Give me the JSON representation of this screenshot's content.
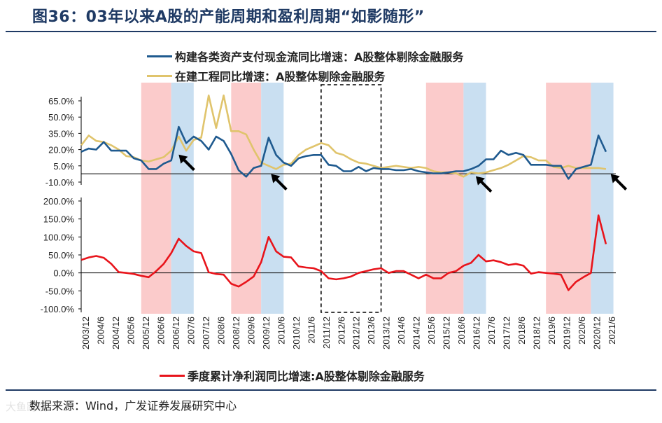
{
  "title": "图36：03年以来A股的产能周期和盈利周期“如影随形”",
  "source": "数据来源：Wind，广发证券发展研究中心",
  "watermark": "大鱼跨境",
  "colors": {
    "cashflow": "#1f5a8f",
    "construction": "#e0c46c",
    "profit": "#e8141b",
    "band_red": "#fbcbcb",
    "band_blue": "#c9dff1",
    "axis": "#000000",
    "title": "#1f3a64"
  },
  "chart_data": [
    {
      "type": "line",
      "title": "",
      "legend": [
        "构建各类资产支付现金流同比增速：A股整体剔除金融服务",
        "在建工程同比增速：A股整体剔除金融服务"
      ],
      "y_ticks": [
        "65.0%",
        "50.0%",
        "35.0%",
        "20.0%",
        "5.0%",
        "-10.0%"
      ],
      "ylim": [
        -10,
        75
      ],
      "x_labels": [
        "2003/12",
        "2004/6",
        "2004/12",
        "2005/6",
        "2005/12",
        "2006/6",
        "2006/12",
        "2007/6",
        "2007/12",
        "2008/6",
        "2008/12",
        "2009/6",
        "2009/12",
        "2010/6",
        "2010/12",
        "2011/6",
        "2011/12",
        "2012/6",
        "2012/12",
        "2013/6",
        "2013/12",
        "2014/6",
        "2014/12",
        "2015/6",
        "2015/12",
        "2016/6",
        "2016/12",
        "2017/6",
        "2017/12",
        "2018/6",
        "2018/12",
        "2019/6",
        "2019/12",
        "2020/6",
        "2020/12",
        "2021/6"
      ],
      "x_start": 2003.917,
      "x_end": 2021.75,
      "series": [
        {
          "name": "构建各类资产支付现金流同比增速：A股整体剔除金融服务",
          "color": "#1f5a8f",
          "points": [
            [
              2003.92,
              18
            ],
            [
              2004.17,
              21
            ],
            [
              2004.42,
              20
            ],
            [
              2004.67,
              27
            ],
            [
              2004.92,
              19
            ],
            [
              2005.17,
              19
            ],
            [
              2005.42,
              19
            ],
            [
              2005.67,
              12
            ],
            [
              2005.92,
              10
            ],
            [
              2006.17,
              2
            ],
            [
              2006.42,
              2
            ],
            [
              2006.67,
              7
            ],
            [
              2006.92,
              10
            ],
            [
              2007.17,
              41
            ],
            [
              2007.42,
              26
            ],
            [
              2007.67,
              32
            ],
            [
              2007.92,
              28
            ],
            [
              2008.17,
              20
            ],
            [
              2008.42,
              32
            ],
            [
              2008.67,
              28
            ],
            [
              2008.92,
              16
            ],
            [
              2009.17,
              1
            ],
            [
              2009.42,
              -5
            ],
            [
              2009.67,
              3
            ],
            [
              2009.92,
              5
            ],
            [
              2010.17,
              31
            ],
            [
              2010.42,
              15
            ],
            [
              2010.67,
              8
            ],
            [
              2010.92,
              5
            ],
            [
              2011.17,
              12
            ],
            [
              2011.42,
              14
            ],
            [
              2011.67,
              15
            ],
            [
              2011.92,
              15
            ],
            [
              2012.17,
              6
            ],
            [
              2012.42,
              5
            ],
            [
              2012.67,
              0
            ],
            [
              2012.92,
              0
            ],
            [
              2013.17,
              4
            ],
            [
              2013.42,
              0
            ],
            [
              2013.67,
              3
            ],
            [
              2013.92,
              2
            ],
            [
              2014.17,
              2
            ],
            [
              2014.42,
              1
            ],
            [
              2014.67,
              1
            ],
            [
              2014.92,
              2
            ],
            [
              2015.17,
              0
            ],
            [
              2015.42,
              -1
            ],
            [
              2015.67,
              -2
            ],
            [
              2015.92,
              -2
            ],
            [
              2016.17,
              -1
            ],
            [
              2016.42,
              0
            ],
            [
              2016.67,
              0
            ],
            [
              2016.92,
              2
            ],
            [
              2017.17,
              5
            ],
            [
              2017.42,
              11
            ],
            [
              2017.67,
              11
            ],
            [
              2017.92,
              19
            ],
            [
              2018.17,
              15
            ],
            [
              2018.42,
              17
            ],
            [
              2018.67,
              15
            ],
            [
              2018.92,
              6
            ],
            [
              2019.17,
              6
            ],
            [
              2019.42,
              6
            ],
            [
              2019.67,
              5
            ],
            [
              2019.92,
              5
            ],
            [
              2020.17,
              -7
            ],
            [
              2020.42,
              2
            ],
            [
              2020.67,
              4
            ],
            [
              2020.92,
              6
            ],
            [
              2021.17,
              33
            ],
            [
              2021.42,
              18
            ]
          ]
        },
        {
          "name": "在建工程同比增速：A股整体剔除金融服务",
          "color": "#e0c46c",
          "points": [
            [
              2003.92,
              24
            ],
            [
              2004.17,
              33
            ],
            [
              2004.42,
              28
            ],
            [
              2004.67,
              27
            ],
            [
              2004.92,
              24
            ],
            [
              2005.17,
              20
            ],
            [
              2005.42,
              14
            ],
            [
              2005.67,
              13
            ],
            [
              2005.92,
              10
            ],
            [
              2006.17,
              9
            ],
            [
              2006.42,
              11
            ],
            [
              2006.67,
              13
            ],
            [
              2006.92,
              19
            ],
            [
              2007.17,
              32
            ],
            [
              2007.42,
              19
            ],
            [
              2007.67,
              29
            ],
            [
              2007.92,
              31
            ],
            [
              2008.17,
              70
            ],
            [
              2008.42,
              40
            ],
            [
              2008.67,
              70
            ],
            [
              2008.92,
              37
            ],
            [
              2009.17,
              37
            ],
            [
              2009.42,
              34
            ],
            [
              2009.67,
              20
            ],
            [
              2009.92,
              8
            ],
            [
              2010.17,
              5
            ],
            [
              2010.42,
              2
            ],
            [
              2010.67,
              6
            ],
            [
              2010.92,
              7
            ],
            [
              2011.17,
              15
            ],
            [
              2011.42,
              20
            ],
            [
              2011.67,
              23
            ],
            [
              2011.92,
              26
            ],
            [
              2012.17,
              24
            ],
            [
              2012.42,
              17
            ],
            [
              2012.67,
              15
            ],
            [
              2012.92,
              11
            ],
            [
              2013.17,
              8
            ],
            [
              2013.42,
              7
            ],
            [
              2013.67,
              5
            ],
            [
              2013.92,
              3
            ],
            [
              2014.17,
              4
            ],
            [
              2014.42,
              5
            ],
            [
              2014.67,
              4
            ],
            [
              2014.92,
              3
            ],
            [
              2015.17,
              4
            ],
            [
              2015.42,
              3
            ],
            [
              2015.67,
              0
            ],
            [
              2015.92,
              -1
            ],
            [
              2016.17,
              -1
            ],
            [
              2016.42,
              -2
            ],
            [
              2016.67,
              -5
            ],
            [
              2016.92,
              -1
            ],
            [
              2017.17,
              -2
            ],
            [
              2017.42,
              -1
            ],
            [
              2017.67,
              1
            ],
            [
              2017.92,
              3
            ],
            [
              2018.17,
              6
            ],
            [
              2018.42,
              10
            ],
            [
              2018.67,
              14
            ],
            [
              2018.92,
              13
            ],
            [
              2019.17,
              10
            ],
            [
              2019.42,
              10
            ],
            [
              2019.67,
              4
            ],
            [
              2019.92,
              3
            ],
            [
              2020.17,
              5
            ],
            [
              2020.42,
              3
            ],
            [
              2020.67,
              3
            ],
            [
              2020.92,
              3
            ],
            [
              2021.17,
              3
            ],
            [
              2021.42,
              2
            ]
          ]
        }
      ],
      "shaded_regions": [
        {
          "from": 2005.92,
          "to": 2006.92,
          "color": "#fbcbcb"
        },
        {
          "from": 2006.92,
          "to": 2007.67,
          "color": "#c9dff1"
        },
        {
          "from": 2008.92,
          "to": 2009.92,
          "color": "#fbcbcb"
        },
        {
          "from": 2009.92,
          "to": 2010.67,
          "color": "#c9dff1"
        },
        {
          "from": 2015.42,
          "to": 2016.67,
          "color": "#fbcbcb"
        },
        {
          "from": 2016.67,
          "to": 2017.42,
          "color": "#c9dff1"
        },
        {
          "from": 2019.42,
          "to": 2020.92,
          "color": "#fbcbcb"
        },
        {
          "from": 2020.92,
          "to": 2021.67,
          "color": "#c9dff1"
        }
      ],
      "dashed_box": {
        "from": 2011.92,
        "to": 2013.92
      },
      "annotations": [
        {
          "type": "arrow",
          "x": 2007.17,
          "y": 18
        },
        {
          "type": "arrow",
          "x": 2010.25,
          "y": 0
        },
        {
          "type": "arrow",
          "x": 2017.08,
          "y": -2
        },
        {
          "type": "arrow",
          "x": 2021.58,
          "y": 0
        }
      ]
    },
    {
      "type": "line",
      "title": "",
      "legend": [
        "季度累计净利润同比增速:A股整体剔除金融服务"
      ],
      "y_ticks": [
        "200.0%",
        "150.0%",
        "100.0%",
        "50.0%",
        "0.0%",
        "-50.0%",
        "-100.0%"
      ],
      "ylim": [
        -100,
        200
      ],
      "series": [
        {
          "name": "季度累计净利润同比增速:A股整体剔除金融服务",
          "color": "#e8141b",
          "points": [
            [
              2003.92,
              36
            ],
            [
              2004.17,
              43
            ],
            [
              2004.42,
              47
            ],
            [
              2004.67,
              42
            ],
            [
              2004.92,
              25
            ],
            [
              2005.17,
              2
            ],
            [
              2005.42,
              0
            ],
            [
              2005.67,
              -3
            ],
            [
              2005.92,
              -8
            ],
            [
              2006.17,
              -12
            ],
            [
              2006.42,
              5
            ],
            [
              2006.67,
              25
            ],
            [
              2006.92,
              55
            ],
            [
              2007.17,
              95
            ],
            [
              2007.42,
              75
            ],
            [
              2007.67,
              60
            ],
            [
              2007.92,
              55
            ],
            [
              2008.17,
              2
            ],
            [
              2008.42,
              -3
            ],
            [
              2008.67,
              -5
            ],
            [
              2008.92,
              -30
            ],
            [
              2009.17,
              -38
            ],
            [
              2009.42,
              -25
            ],
            [
              2009.67,
              -10
            ],
            [
              2009.92,
              30
            ],
            [
              2010.17,
              100
            ],
            [
              2010.42,
              60
            ],
            [
              2010.67,
              45
            ],
            [
              2010.92,
              43
            ],
            [
              2011.17,
              18
            ],
            [
              2011.42,
              15
            ],
            [
              2011.67,
              13
            ],
            [
              2011.92,
              5
            ],
            [
              2012.17,
              -15
            ],
            [
              2012.42,
              -18
            ],
            [
              2012.67,
              -15
            ],
            [
              2012.92,
              -10
            ],
            [
              2013.17,
              0
            ],
            [
              2013.42,
              5
            ],
            [
              2013.67,
              10
            ],
            [
              2013.92,
              13
            ],
            [
              2014.17,
              0
            ],
            [
              2014.42,
              5
            ],
            [
              2014.67,
              5
            ],
            [
              2014.92,
              -5
            ],
            [
              2015.17,
              -15
            ],
            [
              2015.42,
              -5
            ],
            [
              2015.67,
              -15
            ],
            [
              2015.92,
              -15
            ],
            [
              2016.17,
              0
            ],
            [
              2016.42,
              5
            ],
            [
              2016.67,
              20
            ],
            [
              2016.92,
              28
            ],
            [
              2017.17,
              50
            ],
            [
              2017.42,
              32
            ],
            [
              2017.67,
              35
            ],
            [
              2017.92,
              30
            ],
            [
              2018.17,
              22
            ],
            [
              2018.42,
              25
            ],
            [
              2018.67,
              20
            ],
            [
              2018.92,
              -2
            ],
            [
              2019.17,
              2
            ],
            [
              2019.42,
              0
            ],
            [
              2019.67,
              -2
            ],
            [
              2019.92,
              -5
            ],
            [
              2020.17,
              -48
            ],
            [
              2020.42,
              -25
            ],
            [
              2020.67,
              -12
            ],
            [
              2020.92,
              0
            ],
            [
              2021.17,
              160
            ],
            [
              2021.42,
              80
            ]
          ]
        }
      ]
    }
  ]
}
